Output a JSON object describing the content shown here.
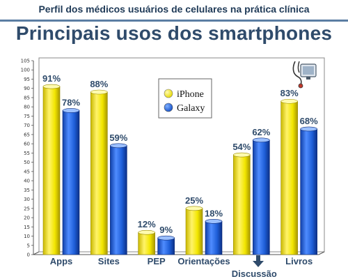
{
  "header": {
    "subtitle": "Perfil dos médicos usuários de celulares na prática clínica",
    "title": "Principais usos dos smartphones"
  },
  "chart_data": {
    "type": "bar",
    "categories": [
      "Apps",
      "Sites",
      "PEP",
      "Orientações",
      "Discussão",
      "Livros"
    ],
    "series": [
      {
        "name": "iPhone",
        "values": [
          91,
          88,
          12,
          25,
          54,
          83
        ],
        "color": "#f2e600"
      },
      {
        "name": "Galaxy",
        "values": [
          78,
          59,
          9,
          18,
          62,
          68
        ],
        "color": "#1f5fd8"
      }
    ],
    "value_labels": [
      [
        "91%",
        "88%",
        "12%",
        "25%",
        "54%",
        "83%"
      ],
      [
        "78%",
        "59%",
        "9%",
        "18%",
        "62%",
        "68%"
      ]
    ],
    "ylim": [
      0,
      105
    ],
    "yticks": [
      0,
      5,
      10,
      15,
      20,
      25,
      30,
      35,
      40,
      45,
      50,
      55,
      60,
      65,
      70,
      75,
      80,
      85,
      90,
      95,
      100,
      105
    ],
    "grid": false,
    "legend": "top-center",
    "icons": [
      "down-arrow-icon",
      "stethoscope-monitor-icon"
    ]
  }
}
